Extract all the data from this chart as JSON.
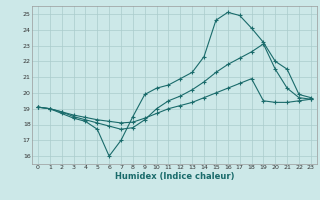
{
  "xlabel": "Humidex (Indice chaleur)",
  "bg_color": "#cce8e8",
  "grid_color": "#aacccc",
  "line_color": "#1a6b6b",
  "xlim": [
    -0.5,
    23.5
  ],
  "ylim": [
    15.5,
    25.5
  ],
  "xticks": [
    0,
    1,
    2,
    3,
    4,
    5,
    6,
    7,
    8,
    9,
    10,
    11,
    12,
    13,
    14,
    15,
    16,
    17,
    18,
    19,
    20,
    21,
    22,
    23
  ],
  "yticks": [
    16,
    17,
    18,
    19,
    20,
    21,
    22,
    23,
    24,
    25
  ],
  "line1_x": [
    0,
    1,
    2,
    3,
    4,
    5,
    6,
    7,
    8,
    9,
    10,
    11,
    12,
    13,
    14,
    15,
    16,
    17,
    18,
    19,
    20,
    21,
    22,
    23
  ],
  "line1_y": [
    19.1,
    19.0,
    18.7,
    18.4,
    18.2,
    17.7,
    16.0,
    17.0,
    18.5,
    19.9,
    20.3,
    20.5,
    20.9,
    21.3,
    22.3,
    24.6,
    25.1,
    24.9,
    24.1,
    23.2,
    22.0,
    21.5,
    19.9,
    19.7
  ],
  "line2_x": [
    0,
    1,
    2,
    3,
    4,
    5,
    6,
    7,
    8,
    9,
    10,
    11,
    12,
    13,
    14,
    15,
    16,
    17,
    18,
    19,
    20,
    21,
    22,
    23
  ],
  "line2_y": [
    19.1,
    19.0,
    18.8,
    18.5,
    18.3,
    18.1,
    17.9,
    17.7,
    17.8,
    18.3,
    19.0,
    19.5,
    19.8,
    20.2,
    20.7,
    21.3,
    21.8,
    22.2,
    22.6,
    23.1,
    21.5,
    20.3,
    19.7,
    19.6
  ],
  "line3_x": [
    0,
    1,
    2,
    3,
    4,
    5,
    6,
    7,
    8,
    9,
    10,
    11,
    12,
    13,
    14,
    15,
    16,
    17,
    18,
    19,
    20,
    21,
    22,
    23
  ],
  "line3_y": [
    19.1,
    19.0,
    18.8,
    18.6,
    18.45,
    18.3,
    18.2,
    18.1,
    18.15,
    18.4,
    18.7,
    19.0,
    19.2,
    19.4,
    19.7,
    20.0,
    20.3,
    20.6,
    20.9,
    19.5,
    19.4,
    19.4,
    19.5,
    19.6
  ]
}
